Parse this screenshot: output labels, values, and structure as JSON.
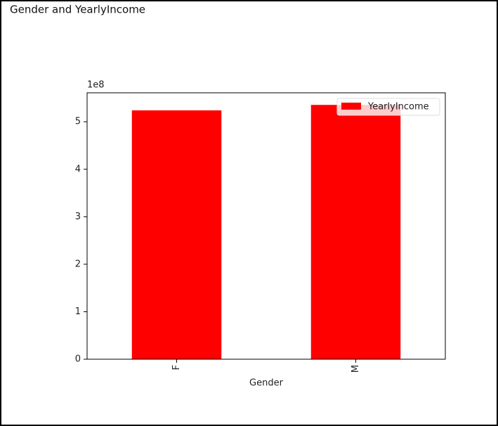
{
  "chart_data": {
    "type": "bar",
    "title": "Gender and YearlyIncome",
    "x_label": "Gender",
    "y_offset_label": "1e8",
    "categories": [
      "F",
      "M"
    ],
    "series": [
      {
        "name": "YearlyIncome",
        "color": "#ff0000",
        "values": [
          5.24,
          5.355
        ]
      }
    ],
    "ylim": [
      0,
      5.61
    ],
    "yticks": [
      0,
      1,
      2,
      3,
      4,
      5
    ],
    "legend": "upper-right",
    "grid": false
  }
}
